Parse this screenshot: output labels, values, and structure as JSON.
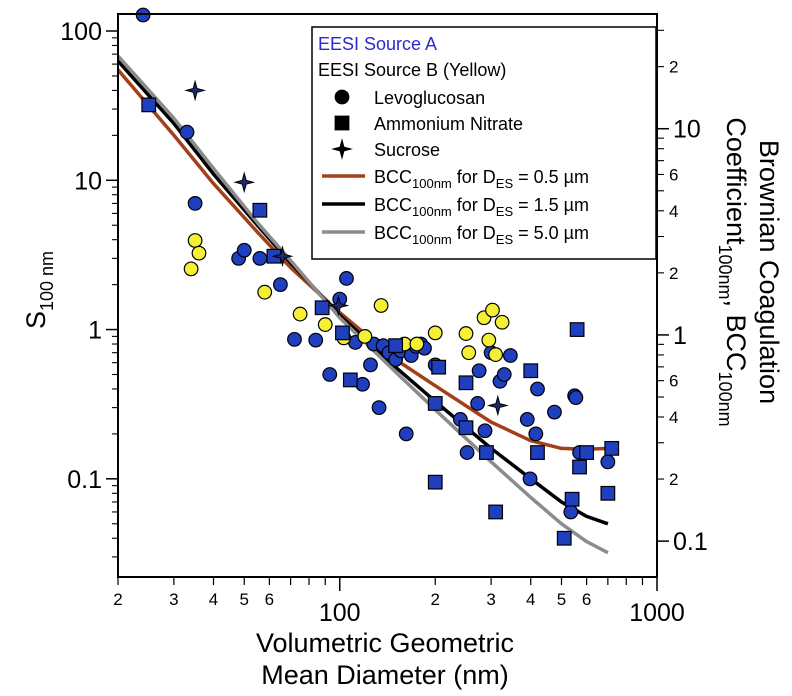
{
  "chart_data": {
    "type": "scatter",
    "x_scale": "log",
    "y_scale": "log",
    "y2_scale": "log",
    "xlim": [
      20,
      1000
    ],
    "ylim": [
      0.022,
      130
    ],
    "y2lim": [
      0.067,
      36
    ],
    "x_major_ticks": [
      {
        "v": 100,
        "t": "100"
      },
      {
        "v": 1000,
        "t": "1000"
      }
    ],
    "x_minor_ticks": [
      {
        "v": 20,
        "t": "2"
      },
      {
        "v": 30,
        "t": "3"
      },
      {
        "v": 40,
        "t": "4"
      },
      {
        "v": 50,
        "t": "5"
      },
      {
        "v": 60,
        "t": "6"
      },
      {
        "v": 70,
        "t": ""
      },
      {
        "v": 80,
        "t": ""
      },
      {
        "v": 90,
        "t": ""
      },
      {
        "v": 200,
        "t": "2"
      },
      {
        "v": 300,
        "t": "3"
      },
      {
        "v": 400,
        "t": "4"
      },
      {
        "v": 500,
        "t": "5"
      },
      {
        "v": 600,
        "t": "6"
      },
      {
        "v": 700,
        "t": ""
      },
      {
        "v": 800,
        "t": ""
      },
      {
        "v": 900,
        "t": ""
      }
    ],
    "y_major_ticks": [
      {
        "v": 0.1,
        "t": "0.1"
      },
      {
        "v": 1,
        "t": "1"
      },
      {
        "v": 10,
        "t": "10"
      },
      {
        "v": 100,
        "t": "100"
      }
    ],
    "y2_major_ticks": [
      {
        "v": 0.1,
        "t": "0.1"
      },
      {
        "v": 1,
        "t": "1"
      },
      {
        "v": 10,
        "t": "10"
      }
    ],
    "y2_minor_ticks": [
      {
        "v": 0.2,
        "t": "2"
      },
      {
        "v": 0.3,
        "t": ""
      },
      {
        "v": 0.4,
        "t": "4"
      },
      {
        "v": 0.5,
        "t": ""
      },
      {
        "v": 0.6,
        "t": "6"
      },
      {
        "v": 0.7,
        "t": ""
      },
      {
        "v": 0.8,
        "t": ""
      },
      {
        "v": 0.9,
        "t": ""
      },
      {
        "v": 2,
        "t": "2"
      },
      {
        "v": 3,
        "t": ""
      },
      {
        "v": 4,
        "t": "4"
      },
      {
        "v": 5,
        "t": ""
      },
      {
        "v": 6,
        "t": "6"
      },
      {
        "v": 7,
        "t": ""
      },
      {
        "v": 8,
        "t": ""
      },
      {
        "v": 9,
        "t": ""
      },
      {
        "v": 20,
        "t": "2"
      },
      {
        "v": 30,
        "t": ""
      }
    ],
    "xlabel_line1": "Volumetric Geometric",
    "xlabel_line2": "Mean Diameter (nm)",
    "ylabel_main": "S",
    "ylabel_sub": "100 nm",
    "y2label_line1": "Brownian Coagulation",
    "y2label_line2_a": "Coefficient",
    "y2label_line2_sub1": "100nm",
    "y2label_line2_b": ", BCC",
    "y2label_line2_sub2": "100nm",
    "legend": {
      "position": "top-right",
      "source_a": "EESI Source A",
      "source_b": "EESI Source B (Yellow)",
      "markers": [
        {
          "shape": "circle",
          "label": "Levoglucosan"
        },
        {
          "shape": "square",
          "label": "Ammonium Nitrate"
        },
        {
          "shape": "star",
          "label": "Sucrose"
        }
      ],
      "curves": [
        {
          "color": "#a3401a",
          "pre": "BCC",
          "sub1": "100nm",
          "mid": " for D",
          "sub2": "ES",
          "post": " = 0.5 µm"
        },
        {
          "color": "#000000",
          "pre": "BCC",
          "sub1": "100nm",
          "mid": " for D",
          "sub2": "ES",
          "post": " = 1.5 µm"
        },
        {
          "color": "#8c8c8c",
          "pre": "BCC",
          "sub1": "100nm",
          "mid": " for D",
          "sub2": "ES",
          "post": " = 5.0 µm"
        }
      ]
    },
    "colors": {
      "source_a": "#1f3fbf",
      "source_b": "#f5f035",
      "source_a_text": "#2a2acf",
      "marker_edge": "#000000"
    },
    "series": [
      {
        "source": "A",
        "shape": "circle",
        "points": [
          [
            24,
            128
          ],
          [
            33,
            21
          ],
          [
            35,
            7
          ],
          [
            48,
            3
          ],
          [
            50,
            3.4
          ],
          [
            56,
            3
          ],
          [
            65,
            2
          ],
          [
            72,
            0.86
          ],
          [
            84,
            0.85
          ],
          [
            93,
            0.5
          ],
          [
            100,
            1.6
          ],
          [
            105,
            2.2
          ],
          [
            112,
            0.82
          ],
          [
            118,
            0.43
          ],
          [
            125,
            0.58
          ],
          [
            128,
            0.8
          ],
          [
            133,
            0.3
          ],
          [
            137,
            0.78
          ],
          [
            143,
            0.7
          ],
          [
            150,
            0.63
          ],
          [
            156,
            0.72
          ],
          [
            162,
            0.2
          ],
          [
            168,
            0.67
          ],
          [
            174,
            0.77
          ],
          [
            180,
            0.8
          ],
          [
            185,
            0.75
          ],
          [
            200,
            0.58
          ],
          [
            240,
            0.25
          ],
          [
            252,
            0.15
          ],
          [
            272,
            0.32
          ],
          [
            275,
            0.53
          ],
          [
            287,
            0.21
          ],
          [
            300,
            0.7
          ],
          [
            320,
            0.45
          ],
          [
            330,
            0.5
          ],
          [
            345,
            0.67
          ],
          [
            390,
            0.25
          ],
          [
            398,
            0.1
          ],
          [
            415,
            0.2
          ],
          [
            420,
            0.4
          ],
          [
            475,
            0.28
          ],
          [
            535,
            0.06
          ],
          [
            550,
            0.36
          ],
          [
            555,
            0.35
          ],
          [
            570,
            0.15
          ],
          [
            700,
            0.13
          ]
        ]
      },
      {
        "source": "B",
        "shape": "circle",
        "points": [
          [
            34,
            2.55
          ],
          [
            35,
            3.95
          ],
          [
            36,
            3.25
          ],
          [
            58,
            1.78
          ],
          [
            75,
            1.27
          ],
          [
            90,
            1.08
          ],
          [
            103,
            0.88
          ],
          [
            120,
            0.9
          ],
          [
            135,
            1.45
          ],
          [
            160,
            0.8
          ],
          [
            175,
            0.8
          ],
          [
            200,
            0.95
          ],
          [
            250,
            0.94
          ],
          [
            255,
            0.7
          ],
          [
            285,
            1.2
          ],
          [
            295,
            0.85
          ],
          [
            303,
            1.35
          ],
          [
            310,
            0.68
          ],
          [
            325,
            1.12
          ]
        ]
      },
      {
        "source": "A",
        "shape": "square",
        "points": [
          [
            25,
            32
          ],
          [
            56,
            6.3
          ],
          [
            62,
            3.1
          ],
          [
            88,
            1.4
          ],
          [
            102,
            0.95
          ],
          [
            108,
            0.46
          ],
          [
            150,
            0.78
          ],
          [
            200,
            0.32
          ],
          [
            205,
            0.56
          ],
          [
            200,
            0.095
          ],
          [
            250,
            0.44
          ],
          [
            250,
            0.22
          ],
          [
            290,
            0.15
          ],
          [
            310,
            0.06
          ],
          [
            400,
            0.53
          ],
          [
            420,
            0.15
          ],
          [
            510,
            0.04
          ],
          [
            540,
            0.073
          ],
          [
            560,
            1
          ],
          [
            600,
            0.15
          ],
          [
            570,
            0.12
          ],
          [
            700,
            0.08
          ],
          [
            720,
            0.16
          ]
        ]
      },
      {
        "source": "A",
        "shape": "star",
        "points": [
          [
            35,
            40
          ],
          [
            50,
            9.7
          ],
          [
            66,
            3.1
          ],
          [
            99,
            1.45
          ],
          [
            315,
            0.31
          ]
        ]
      }
    ],
    "curves": [
      {
        "name": "BCC100nm for DES = 0.5 µm",
        "color": "#a3401a",
        "points": [
          [
            20,
            55
          ],
          [
            30,
            20
          ],
          [
            40,
            9.5
          ],
          [
            55,
            4.5
          ],
          [
            70,
            2.6
          ],
          [
            100,
            1.3
          ],
          [
            150,
            0.63
          ],
          [
            200,
            0.42
          ],
          [
            300,
            0.24
          ],
          [
            400,
            0.18
          ],
          [
            500,
            0.16
          ],
          [
            600,
            0.158
          ],
          [
            700,
            0.16
          ]
        ]
      },
      {
        "name": "BCC100nm for DES = 1.5 µm",
        "color": "#000000",
        "points": [
          [
            20,
            63
          ],
          [
            30,
            24
          ],
          [
            40,
            11
          ],
          [
            55,
            5
          ],
          [
            70,
            2.8
          ],
          [
            100,
            1.25
          ],
          [
            150,
            0.56
          ],
          [
            200,
            0.33
          ],
          [
            300,
            0.16
          ],
          [
            400,
            0.1
          ],
          [
            500,
            0.07
          ],
          [
            600,
            0.056
          ],
          [
            700,
            0.05
          ]
        ]
      },
      {
        "name": "BCC100nm for DES = 5.0 µm",
        "color": "#8c8c8c",
        "points": [
          [
            20,
            68
          ],
          [
            30,
            26
          ],
          [
            40,
            12
          ],
          [
            55,
            5.2
          ],
          [
            70,
            2.9
          ],
          [
            100,
            1.2
          ],
          [
            150,
            0.52
          ],
          [
            200,
            0.29
          ],
          [
            300,
            0.13
          ],
          [
            400,
            0.075
          ],
          [
            500,
            0.05
          ],
          [
            600,
            0.038
          ],
          [
            700,
            0.032
          ]
        ]
      }
    ]
  }
}
